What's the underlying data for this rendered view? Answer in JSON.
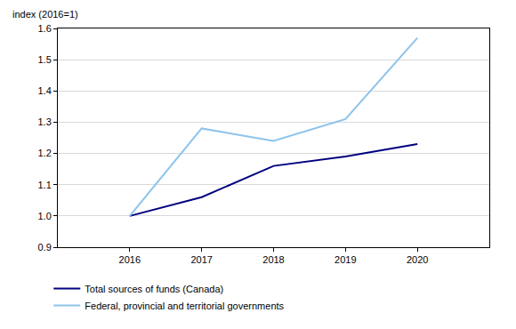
{
  "chart_data": {
    "type": "line",
    "y_label": "index (2016=1)",
    "x": [
      2016,
      2017,
      2018,
      2019,
      2020
    ],
    "series": [
      {
        "name": "Total sources of funds (Canada)",
        "color": "#00007f",
        "line_style": "solid",
        "values": [
          1.0,
          1.06,
          1.16,
          1.19,
          1.23
        ]
      },
      {
        "name": "Federal, provincial and territorial governments",
        "color": "#8cc3ec",
        "line_style": "solid",
        "values": [
          1.0,
          1.28,
          1.24,
          1.31,
          1.57
        ]
      }
    ],
    "xlim": [
      2015,
      2021
    ],
    "xticks": [
      2016,
      2017,
      2018,
      2019,
      2020
    ],
    "ylim": [
      0.9,
      1.6
    ],
    "yticks": [
      0.9,
      {
        "value": 1,
        "label": "1.0"
      },
      1.1,
      1.2,
      1.3,
      1.4,
      1.5,
      1.6
    ],
    "grid": true,
    "legend": "bottom"
  }
}
